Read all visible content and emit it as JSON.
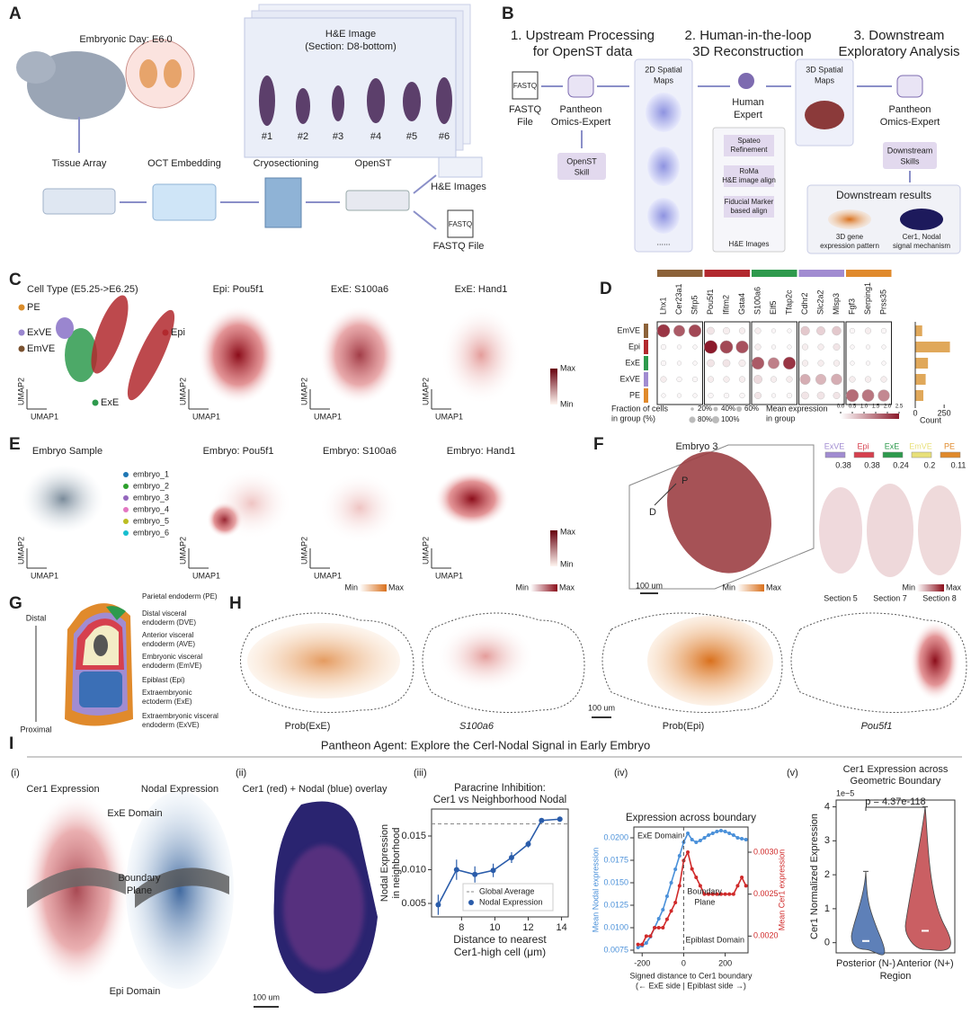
{
  "panel_A": {
    "letter": "A",
    "day": "Embryonic Day: E6.0",
    "he_title": "H&E Image",
    "he_section": "(Section: D8-bottom)",
    "slices": [
      "#1",
      "#2",
      "#3",
      "#4",
      "#5",
      "#6"
    ],
    "steps": [
      "Tissue Array",
      "OCT Embedding",
      "Cryosectioning",
      "OpenST"
    ],
    "out_he": "H&E Images",
    "out_fastq": "FASTQ File",
    "fastq_icon": "FASTQ"
  },
  "panel_B": {
    "letter": "B",
    "step1": [
      "1. Upstream Processing",
      "for OpenST data"
    ],
    "step2": [
      "2. Human-in-the-loop",
      "3D Reconstruction"
    ],
    "step3": [
      "3. Downstream",
      "Exploratory Analysis"
    ],
    "fastq_icon": "FASTQ",
    "fastq": [
      "FASTQ",
      "File"
    ],
    "agent": [
      "Pantheon",
      "Omics-Expert"
    ],
    "openst_skill": [
      "OpenST",
      "Skill"
    ],
    "maps2d": [
      "2D Spatial",
      "Maps"
    ],
    "ellipsis": "......",
    "human": [
      "Human",
      "Expert"
    ],
    "tools": [
      [
        "Spateo",
        "Refinement"
      ],
      [
        "RoMa",
        "H&E image align"
      ],
      [
        "Fiducial Marker",
        "based align"
      ]
    ],
    "he_images": "H&E Images",
    "maps3d": [
      "3D Spatial",
      "Maps"
    ],
    "agent2": [
      "Pantheon",
      "Omics-Expert"
    ],
    "down_skills": [
      "Downstream",
      "Skills"
    ],
    "results": "Downstream results",
    "res1": [
      "3D gene",
      "expression pattern"
    ],
    "res2": [
      "Cer1, Nodal",
      "signal mechanism"
    ]
  },
  "panel_C": {
    "letter": "C",
    "title": "Cell Type (E5.25->E6.25)",
    "cell_types": [
      {
        "name": "PE",
        "color": "#d98c2b"
      },
      {
        "name": "ExVE",
        "color": "#9a86cf"
      },
      {
        "name": "EmVE",
        "color": "#7a5230"
      },
      {
        "name": "Epi",
        "color": "#b2292e"
      },
      {
        "name": "ExE",
        "color": "#2e9a4d"
      }
    ],
    "genes": [
      "Epi: Pou5f1",
      "ExE: S100a6",
      "ExE: Hand1"
    ],
    "umap1": "UMAP1",
    "umap2": "UMAP2",
    "max": "Max",
    "min": "Min"
  },
  "panel_D": {
    "letter": "D",
    "genes": [
      "Lhx1",
      "Cer23a1",
      "Sfrp5",
      "Pou5f1",
      "Ifitm2",
      "Gsta4",
      "S100a6",
      "Elf5",
      "Tfap2c",
      "Cdhr2",
      "Slc2a2",
      "Mlsp3",
      "Fgf3",
      "Serping1",
      "Prss35"
    ],
    "groups": [
      {
        "name": "EmVE",
        "color": "#8c6239"
      },
      {
        "name": "Epi",
        "color": "#b2292e"
      },
      {
        "name": "ExE",
        "color": "#2e9a4d"
      },
      {
        "name": "ExVE",
        "color": "#a18cd1"
      },
      {
        "name": "PE",
        "color": "#e08a2c"
      }
    ],
    "fraction": [
      [
        90,
        70,
        85,
        30,
        25,
        20,
        20,
        10,
        10,
        45,
        40,
        45,
        15,
        20,
        15
      ],
      [
        15,
        10,
        10,
        95,
        90,
        85,
        20,
        10,
        10,
        20,
        20,
        25,
        10,
        10,
        10
      ],
      [
        15,
        10,
        10,
        30,
        30,
        25,
        85,
        70,
        85,
        20,
        20,
        20,
        10,
        10,
        10
      ],
      [
        20,
        15,
        15,
        20,
        20,
        20,
        40,
        20,
        20,
        60,
        60,
        65,
        20,
        20,
        20
      ],
      [
        10,
        10,
        10,
        15,
        15,
        15,
        25,
        10,
        15,
        30,
        30,
        25,
        85,
        80,
        75
      ]
    ],
    "mean": [
      [
        2.2,
        1.8,
        2.0,
        0.3,
        0.2,
        0.2,
        0.2,
        0.1,
        0.1,
        0.6,
        0.5,
        0.6,
        0.1,
        0.2,
        0.1
      ],
      [
        0.1,
        0.1,
        0.1,
        2.5,
        2.0,
        1.9,
        0.2,
        0.1,
        0.1,
        0.2,
        0.2,
        0.3,
        0.1,
        0.1,
        0.1
      ],
      [
        0.1,
        0.1,
        0.1,
        0.3,
        0.3,
        0.2,
        1.8,
        1.4,
        2.2,
        0.2,
        0.2,
        0.2,
        0.1,
        0.1,
        0.1
      ],
      [
        0.2,
        0.1,
        0.1,
        0.2,
        0.2,
        0.2,
        0.4,
        0.2,
        0.2,
        0.9,
        0.8,
        0.9,
        0.2,
        0.2,
        0.2
      ],
      [
        0.1,
        0.1,
        0.1,
        0.1,
        0.1,
        0.1,
        0.3,
        0.1,
        0.1,
        0.3,
        0.3,
        0.3,
        1.6,
        1.5,
        1.3
      ]
    ],
    "counts": [
      60,
      300,
      110,
      90,
      70
    ],
    "count_lim": [
      0,
      350
    ],
    "count_ticks": [
      0,
      250
    ],
    "count_label": "Count",
    "count_color": "#e0a85a",
    "fraction_title": [
      "Fraction of cells",
      "in group (%)"
    ],
    "fraction_ticks": [
      {
        "value": 20,
        "label": "20%"
      },
      {
        "value": 40,
        "label": "40%"
      },
      {
        "value": 60,
        "label": "60%"
      },
      {
        "value": 80,
        "label": "80%"
      },
      {
        "value": 100,
        "label": "100%"
      }
    ],
    "mean_title": [
      "Mean expression",
      "in group"
    ],
    "mean_lim": [
      0,
      2.5
    ],
    "mean_ticks": [
      {
        "value": 0,
        "label": "0.0"
      },
      0.5,
      {
        "value": 1,
        "label": "1.0"
      },
      1.5,
      {
        "value": 2,
        "label": "2.0"
      },
      2.5
    ],
    "mean_color": "#8b1a2b"
  },
  "panel_E": {
    "letter": "E",
    "title": "Embryo Sample",
    "samples": [
      {
        "name": "embryo_1",
        "color": "#1f77b4"
      },
      {
        "name": "embryo_2",
        "color": "#2ca02c"
      },
      {
        "name": "embryo_3",
        "color": "#9467bd"
      },
      {
        "name": "embryo_4",
        "color": "#e377c2"
      },
      {
        "name": "embryo_5",
        "color": "#bcbd22"
      },
      {
        "name": "embryo_6",
        "color": "#17becf"
      }
    ],
    "genes": [
      "Embryo: Pou5f1",
      "Embryo: S100a6",
      "Embryo: Hand1"
    ],
    "umap1": "UMAP1",
    "umap2": "UMAP2",
    "max": "Max",
    "min": "Min"
  },
  "panel_F": {
    "letter": "F",
    "title": "Embryo 3",
    "axis_p": "P",
    "axis_d": "D",
    "scale": "100 um",
    "legend": [
      {
        "name": "ExVE",
        "value": 0.38,
        "color": "#a18cd1"
      },
      {
        "name": "Epi",
        "value": 0.38,
        "color": "#d6404e"
      },
      {
        "name": "ExE",
        "value": 0.24,
        "color": "#2e9a4d"
      },
      {
        "name": "EmVE",
        "value": 0.2,
        "color": "#e8e07a"
      },
      {
        "name": "PE",
        "value": 0.11,
        "color": "#e08a2c"
      }
    ],
    "sections": [
      "Section 5",
      "Section 7",
      "Section 8"
    ]
  },
  "panel_G": {
    "letter": "G",
    "distal": "Distal",
    "proximal": "Proximal",
    "labels": [
      "Parietal endoderm (PE)",
      "Distal visceral",
      "endoderm (DVE)",
      "Anterior visceral",
      "endoderm (AVE)",
      "Embryonic visceral",
      "endoderm (EmVE)",
      "Epiblast (Epi)",
      "Extraembryonic",
      "ectoderm (ExE)",
      "Extraembryonic visceral",
      "endoderm (ExVE)"
    ]
  },
  "panel_H": {
    "letter": "H",
    "min": "Min",
    "max": "Max",
    "maps": [
      "Prob(ExE)",
      "S100a6",
      "Prob(Epi)",
      "Pou5f1"
    ],
    "scale": "100 um"
  },
  "panel_I": {
    "letter": "I",
    "title": "Pantheon Agent: Explore the Cerl-Nodal Signal in Early Embryo",
    "sub": [
      "(i)",
      "(ii)",
      "(iii)",
      "(iv)",
      "(v)"
    ],
    "cer1": "Cer1 Expression",
    "nodal": "Nodal Expression",
    "exe": "ExE Domain",
    "boundary": [
      "Boundary",
      "Plane"
    ],
    "epi": "Epi Domain",
    "scale": "100 um",
    "overlay": "Cer1 (red) + Nodal (blue) overlay"
  },
  "chart_data": [
    {
      "type": "line",
      "title": [
        "Paracrine Inhibition:",
        "Cer1 vs Neighborhood Nodal"
      ],
      "x_label": [
        "Distance to nearest",
        "Cer1-high cell (μm)"
      ],
      "y_label": [
        "Nodal Expression",
        "in neighborhood"
      ],
      "x": [
        6.6,
        7.7,
        8.8,
        9.9,
        11.0,
        12.0,
        12.8,
        13.9
      ],
      "series": [
        {
          "name": "Nodal Expression",
          "color": "#2a5caa",
          "values": [
            0.0048,
            0.01,
            0.0093,
            0.0099,
            0.0118,
            0.0138,
            0.0173,
            0.0175
          ],
          "errors": [
            0.0015,
            0.0015,
            0.0012,
            0.001,
            0.0008,
            0.0005,
            0.0003,
            0.0003
          ]
        }
      ],
      "reference_lines": [
        {
          "name": "Global Average",
          "value": 0.0168,
          "color": "#888888"
        }
      ],
      "xlim": [
        6.2,
        14.4
      ],
      "xticks": [
        8,
        10,
        12,
        14
      ],
      "ylim": [
        0.003,
        0.019
      ],
      "yticks": [
        0.005,
        {
          "value": 0.01,
          "label": "0.010"
        },
        0.015
      ]
    },
    {
      "type": "line",
      "title": [
        "Expression across boundary"
      ],
      "x_label": [
        "Signed distance to Cer1 boundary",
        "(← ExE side | Epiblast side →)"
      ],
      "y_label": [
        "Mean Nodal expression"
      ],
      "y2_label": "Mean Cer1 expression",
      "x": [
        -220,
        -200,
        -180,
        -160,
        -140,
        -120,
        -100,
        -80,
        -60,
        -40,
        -20,
        0,
        20,
        40,
        60,
        80,
        100,
        120,
        140,
        160,
        180,
        200,
        220,
        240,
        260,
        280,
        300
      ],
      "series": [
        {
          "name": "Nodal",
          "color": "#4a90d9",
          "values": [
            0.0078,
            0.008,
            0.0083,
            0.009,
            0.01,
            0.011,
            0.012,
            0.0135,
            0.015,
            0.0165,
            0.018,
            0.0195,
            0.0205,
            0.0198,
            0.0195,
            0.0197,
            0.02,
            0.0203,
            0.0205,
            0.0207,
            0.0208,
            0.0207,
            0.0205,
            0.0203,
            0.02,
            0.0199,
            0.0198
          ]
        },
        {
          "name": "Cer1",
          "color": "#d02a2a",
          "axis": "y2",
          "values": [
            0.0019,
            0.0019,
            0.002,
            0.002,
            0.0021,
            0.0021,
            0.0021,
            0.0022,
            0.0023,
            0.0024,
            0.0026,
            0.0029,
            0.003,
            0.0028,
            0.0027,
            0.0026,
            0.0025,
            0.0025,
            0.0025,
            0.0025,
            0.0025,
            0.0025,
            0.0025,
            0.0025,
            0.0026,
            0.0027,
            0.0026
          ]
        }
      ],
      "annotations": [
        "ExE Domain",
        "Boundary",
        "Plane",
        "Epiblast Domain"
      ],
      "xlim": [
        -240,
        310
      ],
      "xticks": [
        -200,
        0,
        200
      ],
      "ylim": [
        0.0072,
        0.0212
      ],
      "yticks": [
        0.0075,
        {
          "value": 0.01,
          "label": "0.0100"
        },
        0.0125,
        {
          "value": 0.015,
          "label": "0.0150"
        },
        0.0175,
        {
          "value": 0.02,
          "label": "0.0200"
        }
      ],
      "y2lim": [
        0.0018,
        0.0033
      ],
      "y2ticks": [
        {
          "value": 0.002,
          "label": "0.0020"
        },
        0.0025,
        {
          "value": 0.003,
          "label": "0.0030"
        }
      ]
    },
    {
      "type": "violin",
      "title": [
        "Cer1 Expression across",
        "Geometric Boundary"
      ],
      "offset_label": "1e−5",
      "x_label": "Region",
      "y_label": "Cer1 Normalized Expression",
      "categories": [
        "Posterior (N-)",
        "Anterior (N+)"
      ],
      "colors": [
        "#4c72b0",
        "#c44e52"
      ],
      "values": [
        0.05,
        0.35
      ],
      "max": [
        2.1,
        4.0
      ],
      "annotation": "p = 4.37e-118",
      "ylim": [
        -0.3,
        4.2
      ],
      "yticks": [
        0,
        1,
        2,
        3,
        4
      ]
    }
  ]
}
